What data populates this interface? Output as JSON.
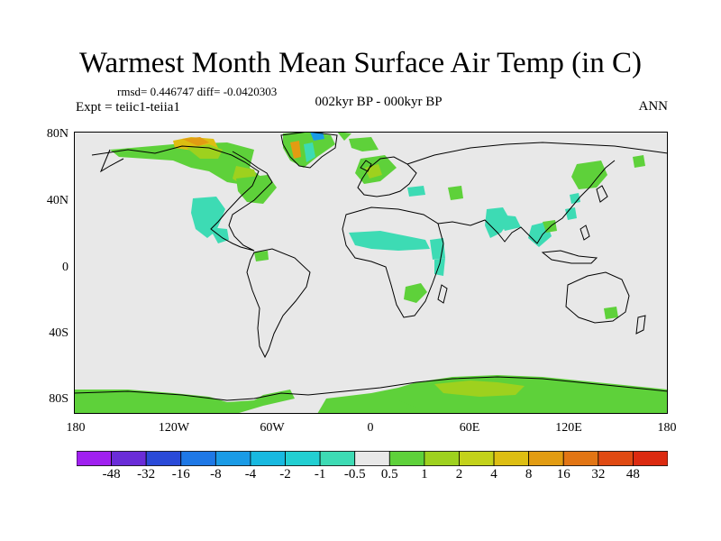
{
  "title": "Warmest Month Mean Surface Air Temp (in C)",
  "stats": "rmsd= 0.446747 diff= -0.0420303",
  "expt": "Expt = teiic1-teiia1",
  "subtitle": "002kyr BP - 000kyr BP",
  "period": "ANN",
  "lat_ticks": [
    "80N",
    "40N",
    "0",
    "40S",
    "80S"
  ],
  "lon_ticks": [
    "180",
    "120W",
    "60W",
    "0",
    "60E",
    "120E",
    "180"
  ],
  "colorbar": {
    "labels": [
      "-48",
      "-32",
      "-16",
      "-8",
      "-4",
      "-2",
      "-1",
      "-0.5",
      "0.5",
      "1",
      "2",
      "4",
      "8",
      "16",
      "32",
      "48"
    ],
    "colors": [
      "#a020f0",
      "#6a2cd8",
      "#2a4ad8",
      "#1e78e6",
      "#1a9be6",
      "#18b9e0",
      "#22cfd2",
      "#3ddbb4",
      "#e8e8e8",
      "#5ed13a",
      "#9ed11e",
      "#c3d21a",
      "#ddbe12",
      "#e29c12",
      "#e27514",
      "#e04a12",
      "#dc2a10"
    ]
  },
  "map": {
    "background": "#e8e8e8",
    "coast_color": "#000000",
    "anomaly_colors": {
      "green": "#5ed13a",
      "lightgreen": "#9ed11e",
      "yellow": "#ddbe12",
      "orange": "#e29c12",
      "red": "#dc2a10",
      "cyan": "#3ddbb4",
      "teal": "#22cfd2",
      "blue": "#1a9be6"
    }
  }
}
